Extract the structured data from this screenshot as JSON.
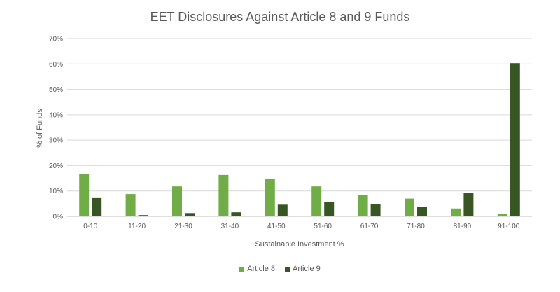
{
  "chart_data": {
    "type": "bar",
    "title": "EET Disclosures Against Article 8 and 9 Funds",
    "xlabel": "Sustainable Investment %",
    "ylabel": "% of Funds",
    "categories": [
      "0-10",
      "11-20",
      "21-30",
      "31-40",
      "41-50",
      "51-60",
      "61-70",
      "71-80",
      "81-90",
      "91-100"
    ],
    "series": [
      {
        "name": "Article 8",
        "color": "#70AD47",
        "values": [
          16.8,
          8.8,
          11.8,
          16.3,
          14.7,
          11.8,
          8.5,
          7.0,
          3.1,
          1.0
        ]
      },
      {
        "name": "Article 9",
        "color": "#375623",
        "values": [
          7.2,
          0.5,
          1.3,
          1.6,
          4.6,
          5.8,
          4.9,
          3.7,
          9.2,
          60.3
        ]
      }
    ],
    "ylim": [
      0,
      70
    ],
    "yticks": [
      0,
      10,
      20,
      30,
      40,
      50,
      60,
      70
    ],
    "ytick_suffix": "%",
    "grid": true,
    "legend": "bottom"
  }
}
